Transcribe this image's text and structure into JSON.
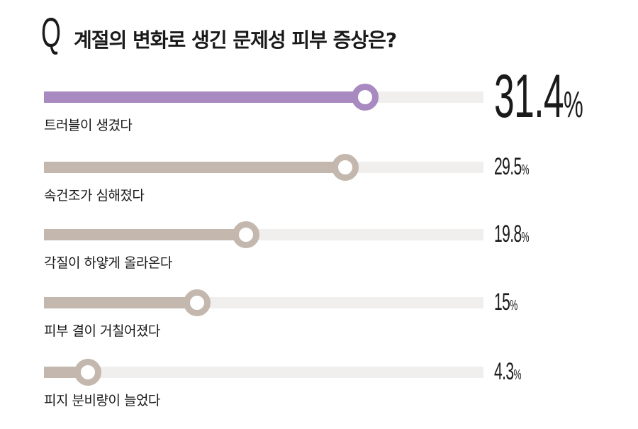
{
  "header": {
    "q_mark": "Q",
    "title": "계절의 변화로 생긴 문제성 피부 증상은?"
  },
  "colors": {
    "highlight": "#a98ac0",
    "normal": "#c4b8ae",
    "track": "#f1eeee"
  },
  "chart_data": {
    "type": "bar",
    "orientation": "horizontal",
    "title": "계절의 변화로 생긴 문제성 피부 증상은?",
    "unit": "%",
    "categories": [
      "트러블이 생겼다",
      "속건조가 심해졌다",
      "각질이 하얗게 올라온다",
      "피부 결이 거칠어졌다",
      "피지 분비량이 늘었다"
    ],
    "values": [
      31.4,
      29.5,
      19.8,
      15,
      4.3
    ],
    "value_labels": [
      "31.4",
      "29.5",
      "19.8",
      "15",
      "4.3"
    ],
    "xlim": [
      0,
      43
    ],
    "highlighted_index": 0
  }
}
